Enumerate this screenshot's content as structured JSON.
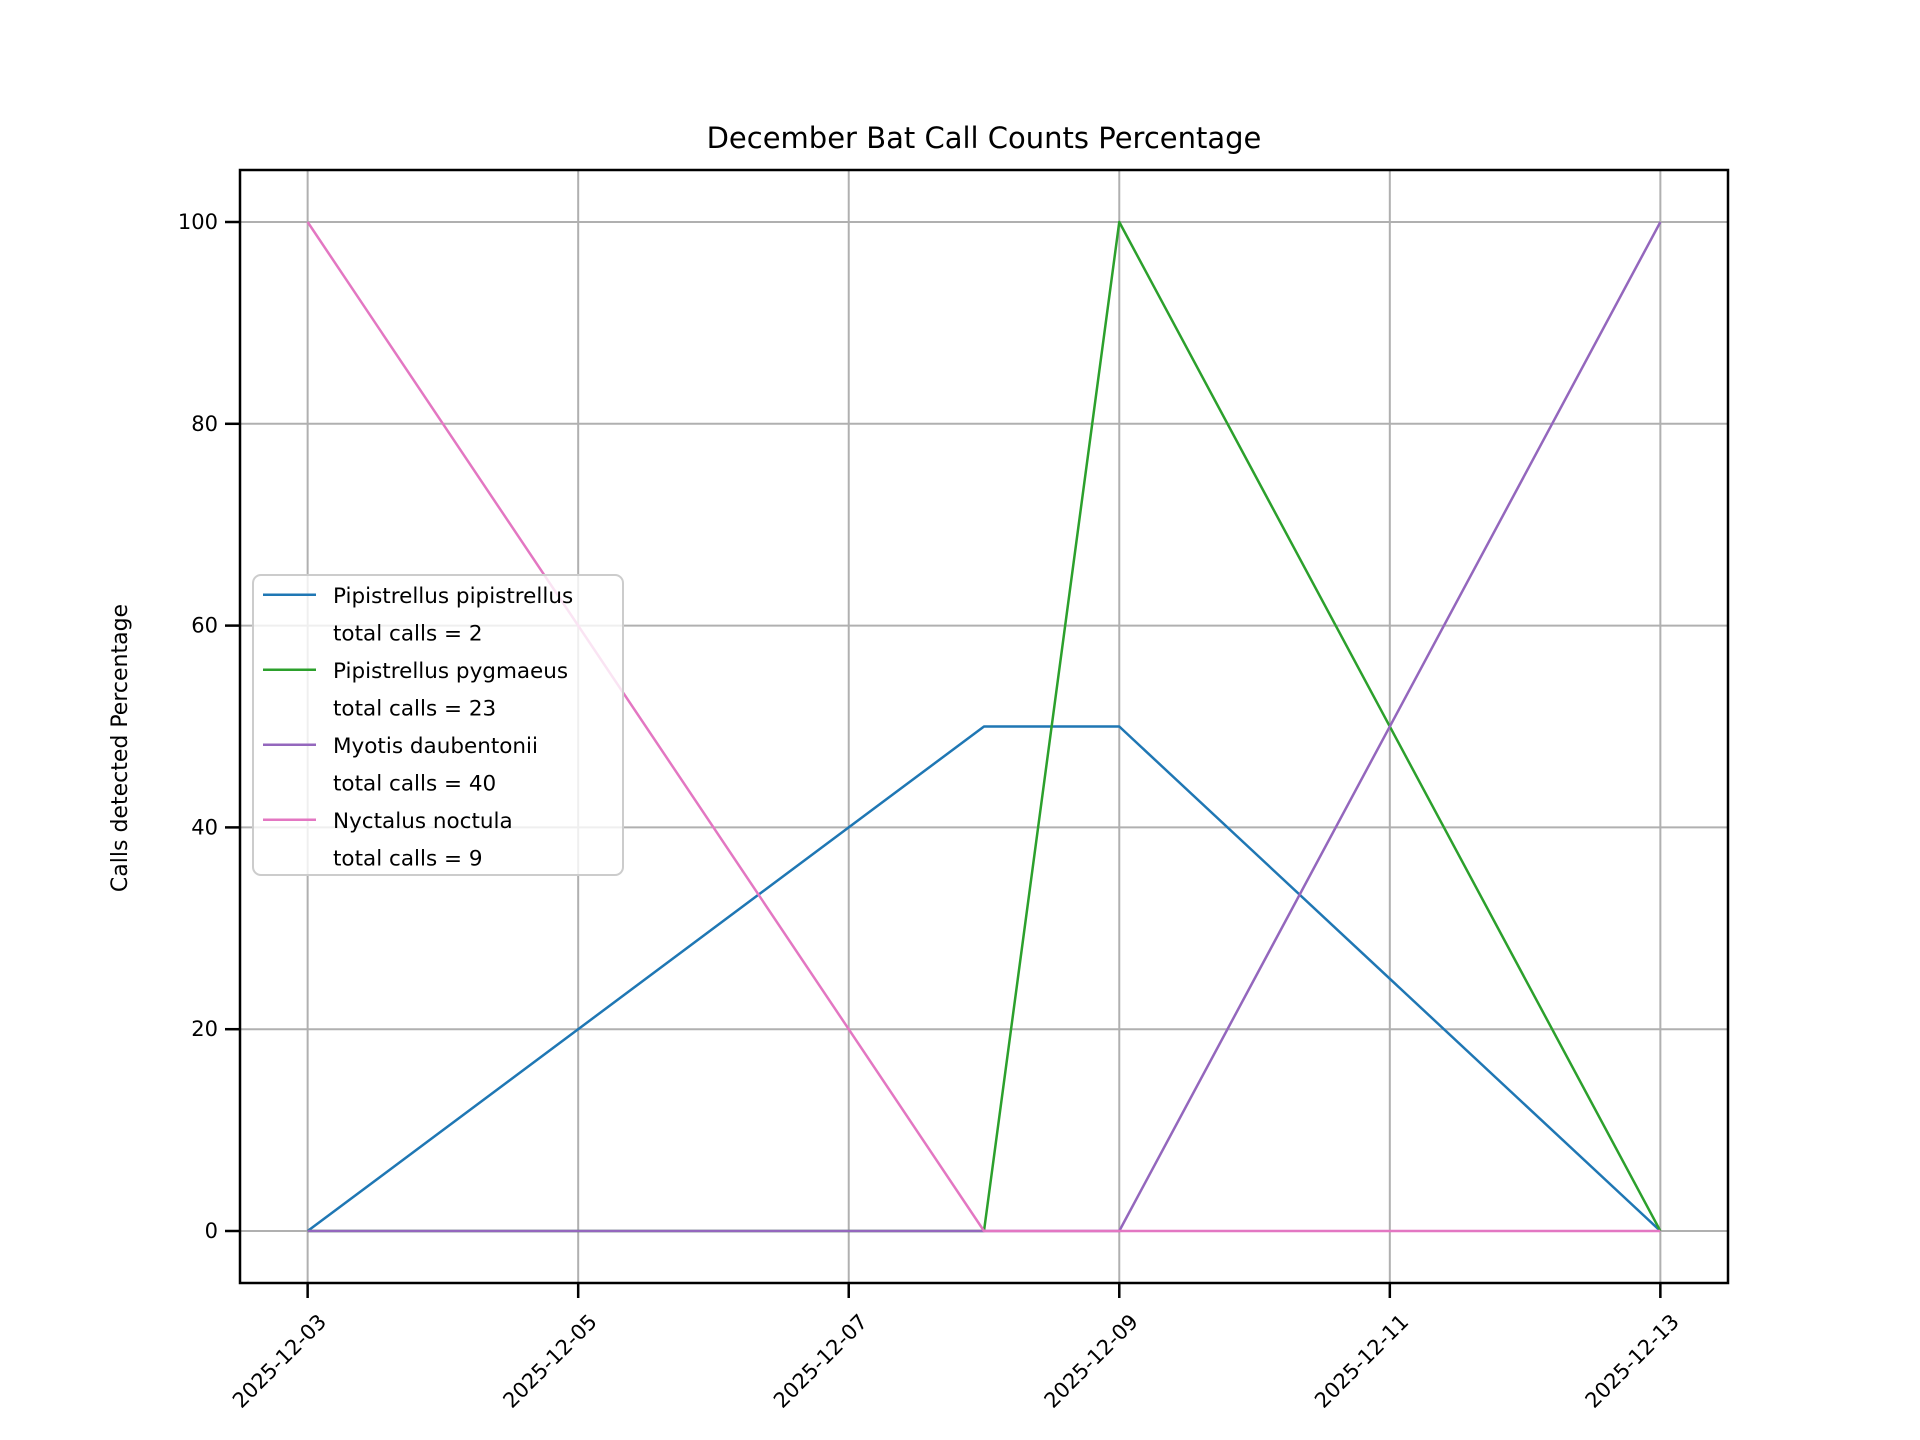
{
  "chart_data": {
    "type": "line",
    "title": "December Bat Call Counts Percentage",
    "xlabel": "",
    "ylabel": "Calls detected Percentage",
    "x": [
      "2025-12-03",
      "2025-12-08",
      "2025-12-09",
      "2025-12-13"
    ],
    "xtick_labels": [
      "2025-12-03",
      "2025-12-05",
      "2025-12-07",
      "2025-12-09",
      "2025-12-11",
      "2025-12-13"
    ],
    "yticks": [
      0,
      20,
      40,
      60,
      80,
      100
    ],
    "ytick_labels": [
      "0",
      "20",
      "40",
      "60",
      "80",
      "100"
    ],
    "xlim_days": [
      2.5,
      13.5
    ],
    "ylim": [
      -5.15,
      105.15
    ],
    "grid": true,
    "grid_color": "#b0b0b0",
    "spine_color": "#000000",
    "background_color": "#ffffff",
    "legend_position": "center-left",
    "series": [
      {
        "name": "Pipistrellus pipistrellus",
        "total_calls": 2,
        "color": "#1f77b4",
        "values": [
          0,
          50,
          50,
          0
        ]
      },
      {
        "name": "Pipistrellus pygmaeus",
        "total_calls": 23,
        "color": "#2ca02c",
        "values": [
          0,
          0,
          100,
          0
        ]
      },
      {
        "name": "Myotis daubentonii",
        "total_calls": 40,
        "color": "#9467bd",
        "values": [
          0,
          0,
          0,
          100
        ]
      },
      {
        "name": "Nyctalus noctula",
        "total_calls": 9,
        "color": "#e377c2",
        "values": [
          100,
          0,
          0,
          0
        ]
      }
    ],
    "legend_entries": [
      {
        "label": "Pipistrellus pipistrellus",
        "sublabel": "total calls = 2",
        "color": "#1f77b4"
      },
      {
        "label": "Pipistrellus pygmaeus",
        "sublabel": "total calls = 23",
        "color": "#2ca02c"
      },
      {
        "label": "Myotis daubentonii",
        "sublabel": "total calls = 40",
        "color": "#9467bd"
      },
      {
        "label": "Nyctalus noctula",
        "sublabel": "total calls = 9",
        "color": "#e377c2"
      }
    ]
  }
}
